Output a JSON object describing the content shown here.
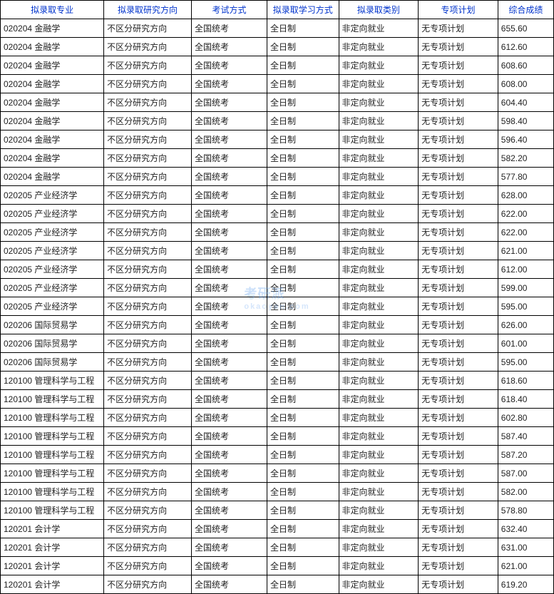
{
  "table": {
    "columns": [
      {
        "label": "拟录取专业",
        "width": 130
      },
      {
        "label": "拟录取研究方向",
        "width": 110
      },
      {
        "label": "考试方式",
        "width": 95
      },
      {
        "label": "拟录取学习方式",
        "width": 90
      },
      {
        "label": "拟录取类别",
        "width": 100
      },
      {
        "label": "专项计划",
        "width": 100
      },
      {
        "label": "综合成绩",
        "width": 70
      }
    ],
    "header_text_color": "#0033cc",
    "border_color": "#000000",
    "cell_text_color": "#222222",
    "rows": [
      [
        "020204 金融学",
        "不区分研究方向",
        "全国统考",
        "全日制",
        "非定向就业",
        "无专项计划",
        "655.60"
      ],
      [
        "020204 金融学",
        "不区分研究方向",
        "全国统考",
        "全日制",
        "非定向就业",
        "无专项计划",
        "612.60"
      ],
      [
        "020204 金融学",
        "不区分研究方向",
        "全国统考",
        "全日制",
        "非定向就业",
        "无专项计划",
        "608.60"
      ],
      [
        "020204 金融学",
        "不区分研究方向",
        "全国统考",
        "全日制",
        "非定向就业",
        "无专项计划",
        "608.00"
      ],
      [
        "020204 金融学",
        "不区分研究方向",
        "全国统考",
        "全日制",
        "非定向就业",
        "无专项计划",
        "604.40"
      ],
      [
        "020204 金融学",
        "不区分研究方向",
        "全国统考",
        "全日制",
        "非定向就业",
        "无专项计划",
        "598.40"
      ],
      [
        "020204 金融学",
        "不区分研究方向",
        "全国统考",
        "全日制",
        "非定向就业",
        "无专项计划",
        "596.40"
      ],
      [
        "020204 金融学",
        "不区分研究方向",
        "全国统考",
        "全日制",
        "非定向就业",
        "无专项计划",
        "582.20"
      ],
      [
        "020204 金融学",
        "不区分研究方向",
        "全国统考",
        "全日制",
        "非定向就业",
        "无专项计划",
        "577.80"
      ],
      [
        "020205 产业经济学",
        "不区分研究方向",
        "全国统考",
        "全日制",
        "非定向就业",
        "无专项计划",
        "628.00"
      ],
      [
        "020205 产业经济学",
        "不区分研究方向",
        "全国统考",
        "全日制",
        "非定向就业",
        "无专项计划",
        "622.00"
      ],
      [
        "020205 产业经济学",
        "不区分研究方向",
        "全国统考",
        "全日制",
        "非定向就业",
        "无专项计划",
        "622.00"
      ],
      [
        "020205 产业经济学",
        "不区分研究方向",
        "全国统考",
        "全日制",
        "非定向就业",
        "无专项计划",
        "621.00"
      ],
      [
        "020205 产业经济学",
        "不区分研究方向",
        "全国统考",
        "全日制",
        "非定向就业",
        "无专项计划",
        "612.00"
      ],
      [
        "020205 产业经济学",
        "不区分研究方向",
        "全国统考",
        "全日制",
        "非定向就业",
        "无专项计划",
        "599.00"
      ],
      [
        "020205 产业经济学",
        "不区分研究方向",
        "全国统考",
        "全日制",
        "非定向就业",
        "无专项计划",
        "595.00"
      ],
      [
        "020206 国际贸易学",
        "不区分研究方向",
        "全国统考",
        "全日制",
        "非定向就业",
        "无专项计划",
        "626.00"
      ],
      [
        "020206 国际贸易学",
        "不区分研究方向",
        "全国统考",
        "全日制",
        "非定向就业",
        "无专项计划",
        "601.00"
      ],
      [
        "020206 国际贸易学",
        "不区分研究方向",
        "全国统考",
        "全日制",
        "非定向就业",
        "无专项计划",
        "595.00"
      ],
      [
        "120100 管理科学与工程",
        "不区分研究方向",
        "全国统考",
        "全日制",
        "非定向就业",
        "无专项计划",
        "618.60"
      ],
      [
        "120100 管理科学与工程",
        "不区分研究方向",
        "全国统考",
        "全日制",
        "非定向就业",
        "无专项计划",
        "618.40"
      ],
      [
        "120100 管理科学与工程",
        "不区分研究方向",
        "全国统考",
        "全日制",
        "非定向就业",
        "无专项计划",
        "602.80"
      ],
      [
        "120100 管理科学与工程",
        "不区分研究方向",
        "全国统考",
        "全日制",
        "非定向就业",
        "无专项计划",
        "587.40"
      ],
      [
        "120100 管理科学与工程",
        "不区分研究方向",
        "全国统考",
        "全日制",
        "非定向就业",
        "无专项计划",
        "587.20"
      ],
      [
        "120100 管理科学与工程",
        "不区分研究方向",
        "全国统考",
        "全日制",
        "非定向就业",
        "无专项计划",
        "587.00"
      ],
      [
        "120100 管理科学与工程",
        "不区分研究方向",
        "全国统考",
        "全日制",
        "非定向就业",
        "无专项计划",
        "582.00"
      ],
      [
        "120100 管理科学与工程",
        "不区分研究方向",
        "全国统考",
        "全日制",
        "非定向就业",
        "无专项计划",
        "578.80"
      ],
      [
        "120201 会计学",
        "不区分研究方向",
        "全国统考",
        "全日制",
        "非定向就业",
        "无专项计划",
        "632.40"
      ],
      [
        "120201 会计学",
        "不区分研究方向",
        "全国统考",
        "全日制",
        "非定向就业",
        "无专项计划",
        "631.00"
      ],
      [
        "120201 会计学",
        "不区分研究方向",
        "全国统考",
        "全日制",
        "非定向就业",
        "无专项计划",
        "621.00"
      ],
      [
        "120201 会计学",
        "不区分研究方向",
        "全国统考",
        "全日制",
        "非定向就业",
        "无专项计划",
        "619.20"
      ]
    ]
  },
  "watermark": {
    "main": "考研派",
    "sub": "okaoyan.com",
    "color": "#6aa6f0",
    "opacity": 0.35
  }
}
